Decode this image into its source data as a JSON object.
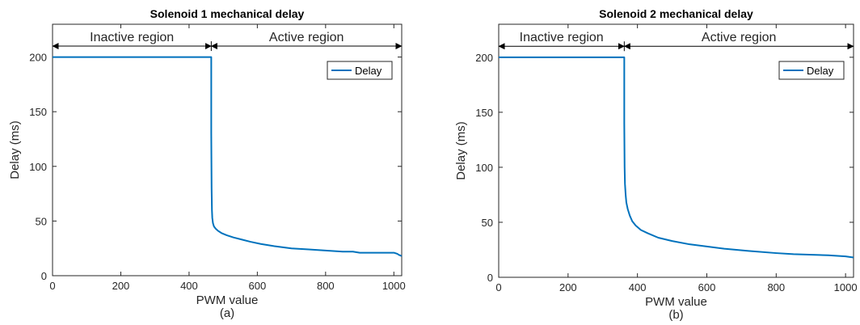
{
  "chart_data": [
    {
      "type": "line",
      "title": "Solenoid 1 mechanical delay",
      "xlabel": "PWM value",
      "ylabel": "Delay (ms)",
      "caption": "(a)",
      "xlim": [
        0,
        1023
      ],
      "ylim": [
        0,
        230
      ],
      "xticks": [
        0,
        200,
        400,
        600,
        800,
        1000
      ],
      "yticks": [
        0,
        50,
        100,
        150,
        200
      ],
      "grid": false,
      "legend_position": "top-right",
      "regions": [
        {
          "label": "Inactive region",
          "x_start": 0,
          "x_end": 465
        },
        {
          "label": "Active region",
          "x_start": 465,
          "x_end": 1023
        }
      ],
      "series": [
        {
          "name": "Delay",
          "color": "#0072BD",
          "x": [
            0,
            465,
            465,
            466,
            467,
            468,
            470,
            473,
            478,
            485,
            495,
            510,
            530,
            555,
            580,
            610,
            650,
            700,
            750,
            800,
            850,
            880,
            900,
            950,
            1000,
            1010,
            1015,
            1023
          ],
          "y": [
            200,
            200,
            130,
            80,
            60,
            53,
            48,
            45,
            43,
            41,
            39,
            37,
            35,
            33,
            31,
            29,
            27,
            25,
            24,
            23,
            22,
            22,
            21,
            21,
            21,
            20,
            19,
            18
          ]
        }
      ]
    },
    {
      "type": "line",
      "title": "Solenoid 2 mechanical delay",
      "xlabel": "PWM value",
      "ylabel": "Delay (ms)",
      "caption": "(b)",
      "xlim": [
        0,
        1023
      ],
      "ylim": [
        0,
        230
      ],
      "xticks": [
        0,
        200,
        400,
        600,
        800,
        1000
      ],
      "yticks": [
        0,
        50,
        100,
        150,
        200
      ],
      "grid": false,
      "legend_position": "top-right",
      "regions": [
        {
          "label": "Inactive region",
          "x_start": 0,
          "x_end": 362
        },
        {
          "label": "Active region",
          "x_start": 362,
          "x_end": 1023
        }
      ],
      "series": [
        {
          "name": "Delay",
          "color": "#0072BD",
          "x": [
            0,
            362,
            362,
            363,
            364,
            366,
            368,
            372,
            378,
            385,
            395,
            410,
            430,
            460,
            500,
            550,
            600,
            650,
            720,
            800,
            850,
            950,
            1000,
            1023
          ],
          "y": [
            200,
            200,
            140,
            100,
            85,
            75,
            68,
            62,
            56,
            51,
            47,
            43,
            40,
            36,
            33,
            30,
            28,
            26,
            24,
            22,
            21,
            20,
            19,
            18
          ]
        }
      ]
    }
  ]
}
